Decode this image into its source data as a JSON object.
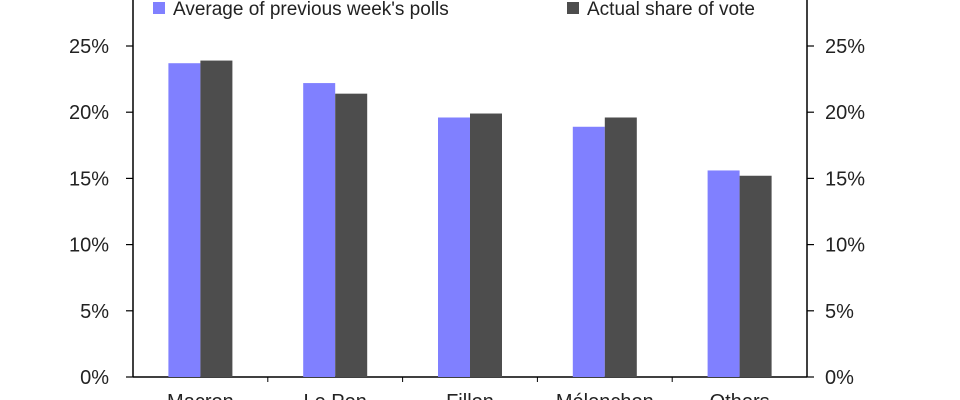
{
  "chart_data": {
    "type": "bar",
    "categories": [
      "Macron",
      "Le Pen",
      "Fillon",
      "Mélenchon",
      "Others"
    ],
    "series": [
      {
        "name": "Average of previous week's polls",
        "color": "#8080ff",
        "values": [
          23.7,
          22.2,
          19.6,
          18.9,
          15.6
        ]
      },
      {
        "name": "Actual share of vote",
        "color": "#4d4d4d",
        "values": [
          23.9,
          21.4,
          19.9,
          19.6,
          15.2
        ]
      }
    ],
    "ylim": [
      0,
      25
    ],
    "yticks": [
      "0%",
      "5%",
      "10%",
      "15%",
      "20%",
      "25%"
    ],
    "ytick_values": [
      0,
      5,
      10,
      15,
      20,
      25
    ],
    "secondary_axis": true,
    "grid": false,
    "legend_position": "top"
  }
}
